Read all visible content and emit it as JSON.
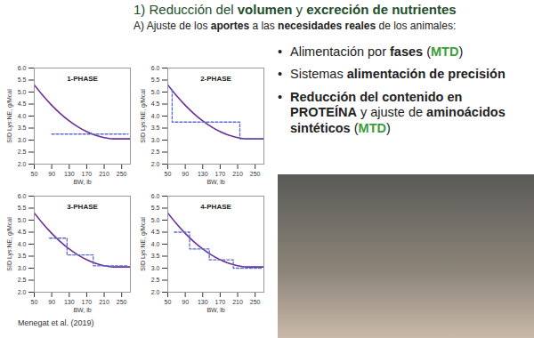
{
  "header": {
    "line1": [
      {
        "text": "1) Reducción del "
      },
      {
        "text": "volumen",
        "bold": true
      },
      {
        "text": " y "
      },
      {
        "text": "excreción de nutrientes",
        "bold": true
      }
    ],
    "line2": [
      {
        "text": "A) Ajuste de los "
      },
      {
        "text": "aportes",
        "bold": true
      },
      {
        "text": " a las "
      },
      {
        "text": "necesidades reales",
        "bold": true
      },
      {
        "text": " de los animales:"
      }
    ]
  },
  "bullets": [
    [
      {
        "text": "Alimentación por "
      },
      {
        "text": "fases",
        "bold": true
      },
      {
        "text": " ("
      },
      {
        "text": "MTD",
        "bold": true,
        "color": "#3a9d3a"
      },
      {
        "text": ")"
      }
    ],
    [
      {
        "text": "Sistemas "
      },
      {
        "text": "alimentación de precisión",
        "bold": true
      }
    ],
    [
      {
        "text": "Reducción del contenido en PROTEÍNA",
        "bold": true
      },
      {
        "text": " y ajuste de "
      },
      {
        "text": "aminoácidos sintéticos",
        "bold": true
      },
      {
        "text": " ("
      },
      {
        "text": "MTD",
        "bold": true,
        "color": "#3a9d3a"
      },
      {
        "text": ")"
      }
    ]
  ],
  "caption": "Menegat et al. (2019)",
  "chart_data": [
    {
      "type": "line",
      "title": "1-PHASE",
      "x_label": "BW, lb",
      "y_label": "SID Lys:NE, g/Mcal",
      "xlim": [
        50,
        270
      ],
      "ylim": [
        2.0,
        6.0
      ],
      "xticks": [
        50,
        90,
        130,
        170,
        210,
        250
      ],
      "yticks": [
        {
          "value": 2.0,
          "label": "2.0"
        },
        {
          "value": 2.5,
          "label": "2.5"
        },
        {
          "value": 3.0,
          "label": "3.0"
        },
        {
          "value": 3.5,
          "label": "3.5"
        },
        {
          "value": 4.0,
          "label": "4.0"
        },
        {
          "value": 4.5,
          "label": "4.5"
        },
        {
          "value": 5.0,
          "label": "5.0"
        },
        {
          "value": 5.5,
          "label": "5.5"
        },
        {
          "value": 6.0,
          "label": "6.0"
        }
      ],
      "grid": false,
      "series": [
        {
          "color": "#6a2f9a",
          "line_style": "solid",
          "x": [
            50,
            70,
            90,
            110,
            130,
            150,
            170,
            190,
            210,
            230,
            250,
            270
          ],
          "values": [
            5.3,
            4.85,
            4.45,
            4.1,
            3.8,
            3.55,
            3.35,
            3.2,
            3.1,
            3.05,
            3.05,
            3.05
          ]
        },
        {
          "color": "#5b6fc4",
          "line_style": "dashed",
          "x": [
            90,
            265
          ],
          "values": [
            3.25,
            3.25
          ]
        }
      ]
    },
    {
      "type": "line",
      "title": "2-PHASE",
      "x_label": "BW, lb",
      "y_label": "SID Lys:NE, g/Mcal",
      "xlim": [
        50,
        270
      ],
      "ylim": [
        2.0,
        6.0
      ],
      "xticks": [
        50,
        90,
        130,
        170,
        210,
        250
      ],
      "yticks": [
        {
          "value": 2.0,
          "label": "2.0"
        },
        {
          "value": 2.5,
          "label": "2.5"
        },
        {
          "value": 3.0,
          "label": "3.0"
        },
        {
          "value": 3.5,
          "label": "3.5"
        },
        {
          "value": 4.0,
          "label": "4.0"
        },
        {
          "value": 4.5,
          "label": "4.5"
        },
        {
          "value": 5.0,
          "label": "5.0"
        },
        {
          "value": 5.5,
          "label": "5.5"
        },
        {
          "value": 6.0,
          "label": "6.0"
        }
      ],
      "grid": false,
      "series": [
        {
          "color": "#6a2f9a",
          "line_style": "solid",
          "x": [
            50,
            70,
            90,
            110,
            130,
            150,
            170,
            190,
            210,
            230,
            250,
            270
          ],
          "values": [
            5.3,
            4.85,
            4.45,
            4.1,
            3.8,
            3.55,
            3.35,
            3.2,
            3.1,
            3.05,
            3.05,
            3.05
          ]
        },
        {
          "color": "#5b6fc4",
          "line_style": "dashed",
          "x": [
            60,
            60,
            215,
            215,
            265
          ],
          "values": [
            5.1,
            3.75,
            3.75,
            3.05,
            3.05
          ]
        }
      ]
    },
    {
      "type": "line",
      "title": "3-PHASE",
      "x_label": "BW, lb",
      "y_label": "SID Lys:NE, g/Mcal",
      "xlim": [
        50,
        270
      ],
      "ylim": [
        2.0,
        6.0
      ],
      "xticks": [
        50,
        90,
        130,
        170,
        210,
        250
      ],
      "yticks": [
        {
          "value": 2.0,
          "label": "2.0"
        },
        {
          "value": 2.5,
          "label": "2.5"
        },
        {
          "value": 3.0,
          "label": "3.0"
        },
        {
          "value": 3.5,
          "label": "3.5"
        },
        {
          "value": 4.0,
          "label": "4.0"
        },
        {
          "value": 4.5,
          "label": "4.5"
        },
        {
          "value": 5.0,
          "label": "5.0"
        },
        {
          "value": 5.5,
          "label": "5.5"
        },
        {
          "value": 6.0,
          "label": "6.0"
        }
      ],
      "grid": false,
      "series": [
        {
          "color": "#6a2f9a",
          "line_style": "solid",
          "x": [
            50,
            70,
            90,
            110,
            130,
            150,
            170,
            190,
            210,
            230,
            250,
            270
          ],
          "values": [
            5.3,
            4.85,
            4.45,
            4.1,
            3.8,
            3.55,
            3.35,
            3.2,
            3.1,
            3.05,
            3.05,
            3.05
          ]
        },
        {
          "color": "#5b6fc4",
          "line_style": "dashed",
          "x": [
            85,
            125,
            125,
            185,
            185,
            265
          ],
          "values": [
            4.25,
            4.25,
            3.55,
            3.55,
            3.1,
            3.1
          ]
        }
      ]
    },
    {
      "type": "line",
      "title": "4-PHASE",
      "x_label": "BW, lb",
      "y_label": "SID Lys:NE, g/Mcal",
      "xlim": [
        50,
        270
      ],
      "ylim": [
        2.0,
        6.0
      ],
      "xticks": [
        50,
        90,
        130,
        170,
        210,
        250
      ],
      "yticks": [
        {
          "value": 2.0,
          "label": "2.0"
        },
        {
          "value": 2.5,
          "label": "2.5"
        },
        {
          "value": 3.0,
          "label": "3.0"
        },
        {
          "value": 3.5,
          "label": "3.5"
        },
        {
          "value": 4.0,
          "label": "4.0"
        },
        {
          "value": 4.5,
          "label": "4.5"
        },
        {
          "value": 5.0,
          "label": "5.0"
        },
        {
          "value": 5.5,
          "label": "5.5"
        },
        {
          "value": 6.0,
          "label": "6.0"
        }
      ],
      "grid": false,
      "series": [
        {
          "color": "#6a2f9a",
          "line_style": "solid",
          "x": [
            50,
            70,
            90,
            110,
            130,
            150,
            170,
            190,
            210,
            230,
            250,
            270
          ],
          "values": [
            5.3,
            4.85,
            4.45,
            4.1,
            3.8,
            3.55,
            3.35,
            3.2,
            3.1,
            3.05,
            3.05,
            3.05
          ]
        },
        {
          "color": "#5b6fc4",
          "line_style": "dashed",
          "x": [
            65,
            100,
            100,
            145,
            145,
            200,
            200,
            265
          ],
          "values": [
            4.5,
            4.5,
            3.8,
            3.8,
            3.35,
            3.35,
            3.0,
            3.0
          ]
        }
      ]
    }
  ]
}
